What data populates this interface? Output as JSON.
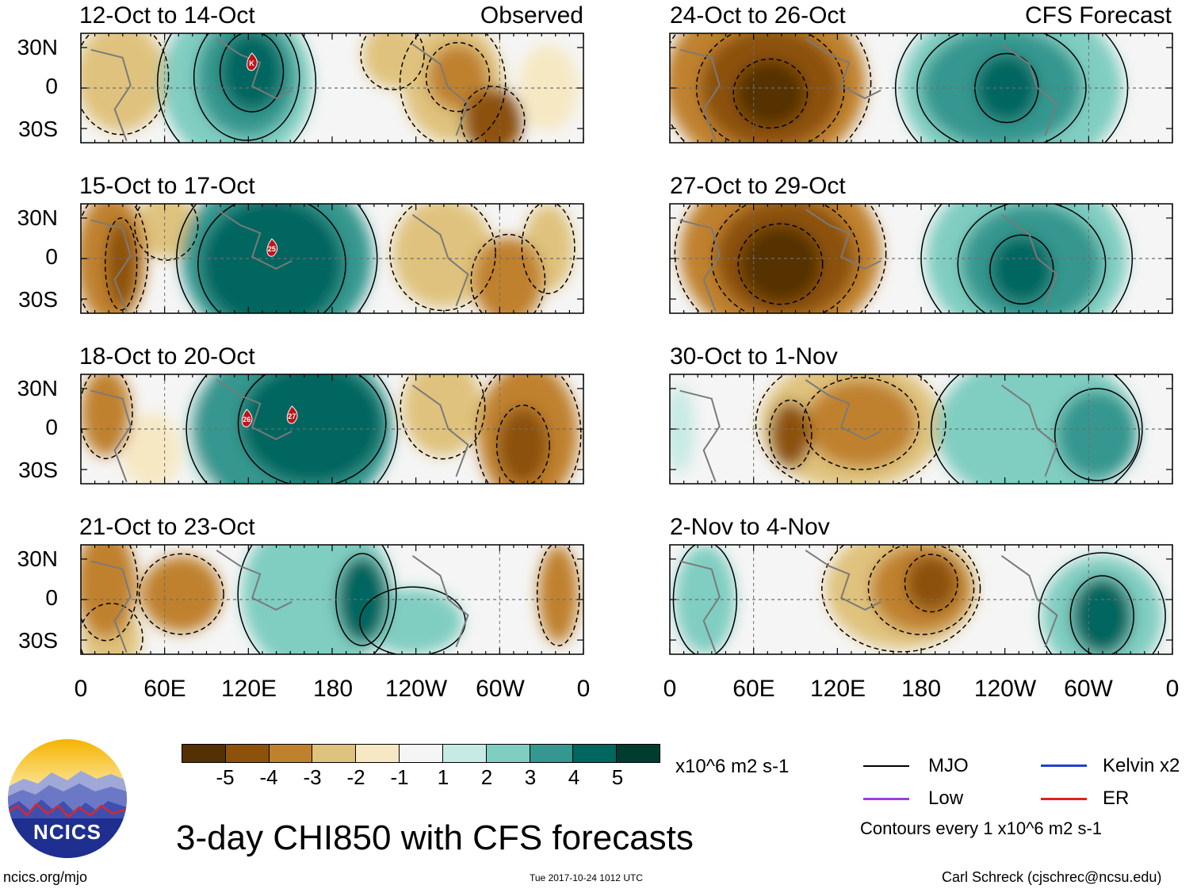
{
  "panels": [
    {
      "title": "12-Oct to 14-Oct",
      "label": "Observed",
      "markers": [
        "K"
      ]
    },
    {
      "title": "15-Oct to 17-Oct",
      "label": "",
      "markers": [
        "25"
      ]
    },
    {
      "title": "18-Oct to 20-Oct",
      "label": "",
      "markers": [
        "26",
        "27"
      ]
    },
    {
      "title": "21-Oct to 23-Oct",
      "label": "",
      "markers": []
    },
    {
      "title": "24-Oct to 26-Oct",
      "label": "CFS Forecast",
      "markers": []
    },
    {
      "title": "27-Oct to 29-Oct",
      "label": "",
      "markers": []
    },
    {
      "title": "30-Oct to 1-Nov",
      "label": "",
      "markers": []
    },
    {
      "title": "2-Nov to 4-Nov",
      "label": "",
      "markers": []
    }
  ],
  "axes": {
    "y_ticks": [
      "30N",
      "0",
      "30S"
    ],
    "x_ticks": [
      "0",
      "60E",
      "120E",
      "180",
      "120W",
      "60W",
      "0"
    ]
  },
  "colorbar": {
    "labels": [
      "-5",
      "-4",
      "-3",
      "-2",
      "-1",
      "1",
      "2",
      "3",
      "4",
      "5"
    ],
    "colors": [
      "#543005",
      "#8c510a",
      "#bf812d",
      "#dfc27d",
      "#f6e8c3",
      "#f5f5f5",
      "#c7eae5",
      "#80cdc1",
      "#35978f",
      "#01665e",
      "#003c30"
    ],
    "units": "x10^6 m2 s-1"
  },
  "legend": {
    "items": [
      {
        "label": "MJO",
        "color": "#000000"
      },
      {
        "label": "Kelvin x2",
        "color": "#1f3fd6"
      },
      {
        "label": "Low",
        "color": "#9b3fe0"
      },
      {
        "label": "ER",
        "color": "#e01f1f"
      }
    ],
    "contour_note": "Contours every 1 x10^6 m2 s-1"
  },
  "logo": {
    "text": "NCICS"
  },
  "main_title": "3-day CHI850 with CFS forecasts",
  "footer": {
    "url": "ncics.org/mjo",
    "timestamp": "Tue 2017-10-24 1012 UTC",
    "author": "Carl Schreck (cjschrec@ncsu.edu)"
  }
}
